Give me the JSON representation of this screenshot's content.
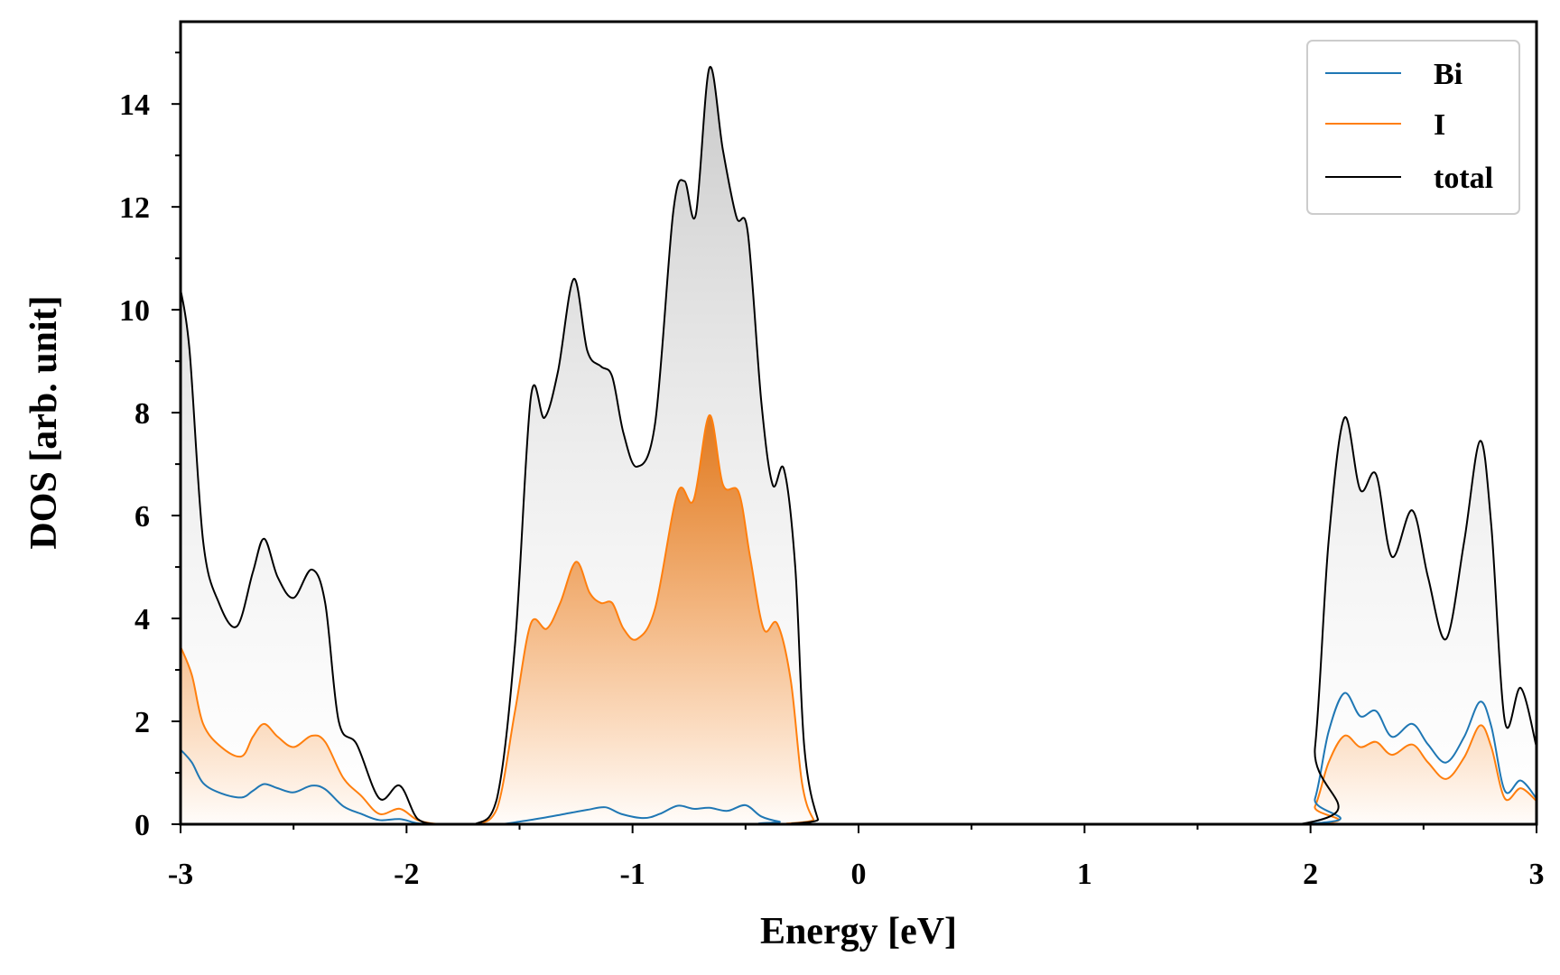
{
  "chart_data": {
    "type": "area",
    "title": "",
    "xlabel": "Energy [eV]",
    "ylabel": "DOS [arb. unit]",
    "xlim": [
      -3,
      3
    ],
    "ylim": [
      0,
      15.6
    ],
    "xticks": [
      -3,
      -2,
      -1,
      0,
      1,
      2,
      3
    ],
    "yticks": [
      0,
      2,
      4,
      6,
      8,
      10,
      12,
      14
    ],
    "grid": false,
    "legend_position": "top-right",
    "series": [
      {
        "name": "Bi",
        "color": "#1f77b4",
        "filled": false,
        "points": [
          [
            -3.0,
            1.45
          ],
          [
            -2.95,
            1.2
          ],
          [
            -2.9,
            0.8
          ],
          [
            -2.82,
            0.6
          ],
          [
            -2.73,
            0.52
          ],
          [
            -2.68,
            0.65
          ],
          [
            -2.63,
            0.78
          ],
          [
            -2.57,
            0.7
          ],
          [
            -2.5,
            0.62
          ],
          [
            -2.42,
            0.75
          ],
          [
            -2.36,
            0.68
          ],
          [
            -2.28,
            0.35
          ],
          [
            -2.2,
            0.2
          ],
          [
            -2.12,
            0.08
          ],
          [
            -2.03,
            0.1
          ],
          [
            -1.95,
            0.02
          ],
          [
            -1.85,
            0.0
          ],
          [
            -1.6,
            0.0
          ],
          [
            -1.5,
            0.05
          ],
          [
            -1.4,
            0.12
          ],
          [
            -1.3,
            0.2
          ],
          [
            -1.2,
            0.28
          ],
          [
            -1.12,
            0.33
          ],
          [
            -1.05,
            0.2
          ],
          [
            -0.95,
            0.12
          ],
          [
            -0.88,
            0.2
          ],
          [
            -0.8,
            0.36
          ],
          [
            -0.73,
            0.3
          ],
          [
            -0.66,
            0.32
          ],
          [
            -0.58,
            0.26
          ],
          [
            -0.5,
            0.37
          ],
          [
            -0.43,
            0.15
          ],
          [
            -0.35,
            0.05
          ],
          [
            -0.25,
            0.0
          ],
          [
            1.95,
            0.0
          ],
          [
            2.02,
            0.5
          ],
          [
            2.08,
            1.8
          ],
          [
            2.15,
            2.55
          ],
          [
            2.22,
            2.1
          ],
          [
            2.29,
            2.2
          ],
          [
            2.36,
            1.7
          ],
          [
            2.45,
            1.95
          ],
          [
            2.52,
            1.55
          ],
          [
            2.6,
            1.2
          ],
          [
            2.68,
            1.7
          ],
          [
            2.75,
            2.38
          ],
          [
            2.8,
            1.9
          ],
          [
            2.86,
            0.65
          ],
          [
            2.93,
            0.85
          ],
          [
            3.0,
            0.5
          ]
        ]
      },
      {
        "name": "I",
        "color": "#ff7f0e",
        "filled": true,
        "points": [
          [
            -3.0,
            3.45
          ],
          [
            -2.95,
            2.9
          ],
          [
            -2.9,
            1.95
          ],
          [
            -2.82,
            1.5
          ],
          [
            -2.73,
            1.32
          ],
          [
            -2.68,
            1.7
          ],
          [
            -2.63,
            1.95
          ],
          [
            -2.57,
            1.7
          ],
          [
            -2.5,
            1.5
          ],
          [
            -2.42,
            1.72
          ],
          [
            -2.36,
            1.6
          ],
          [
            -2.28,
            0.9
          ],
          [
            -2.2,
            0.55
          ],
          [
            -2.12,
            0.2
          ],
          [
            -2.03,
            0.3
          ],
          [
            -1.95,
            0.08
          ],
          [
            -1.85,
            0.0
          ],
          [
            -1.7,
            0.0
          ],
          [
            -1.6,
            0.3
          ],
          [
            -1.52,
            2.2
          ],
          [
            -1.45,
            3.9
          ],
          [
            -1.38,
            3.8
          ],
          [
            -1.32,
            4.3
          ],
          [
            -1.25,
            5.1
          ],
          [
            -1.19,
            4.5
          ],
          [
            -1.14,
            4.3
          ],
          [
            -1.09,
            4.3
          ],
          [
            -1.04,
            3.8
          ],
          [
            -0.98,
            3.6
          ],
          [
            -0.9,
            4.2
          ],
          [
            -0.8,
            6.45
          ],
          [
            -0.73,
            6.3
          ],
          [
            -0.66,
            7.95
          ],
          [
            -0.6,
            6.6
          ],
          [
            -0.53,
            6.45
          ],
          [
            -0.48,
            5.2
          ],
          [
            -0.42,
            3.8
          ],
          [
            -0.36,
            3.9
          ],
          [
            -0.3,
            2.8
          ],
          [
            -0.25,
            0.8
          ],
          [
            -0.2,
            0.1
          ],
          [
            -0.15,
            0.0
          ],
          [
            1.95,
            0.0
          ],
          [
            2.02,
            0.35
          ],
          [
            2.08,
            1.2
          ],
          [
            2.15,
            1.72
          ],
          [
            2.22,
            1.5
          ],
          [
            2.29,
            1.6
          ],
          [
            2.36,
            1.35
          ],
          [
            2.45,
            1.55
          ],
          [
            2.52,
            1.2
          ],
          [
            2.6,
            0.88
          ],
          [
            2.68,
            1.3
          ],
          [
            2.75,
            1.92
          ],
          [
            2.8,
            1.5
          ],
          [
            2.86,
            0.5
          ],
          [
            2.93,
            0.7
          ],
          [
            3.0,
            0.45
          ]
        ]
      },
      {
        "name": "total",
        "color": "#000000",
        "filled": true,
        "points": [
          [
            -3.0,
            10.4
          ],
          [
            -2.96,
            9.2
          ],
          [
            -2.9,
            5.5
          ],
          [
            -2.83,
            4.3
          ],
          [
            -2.75,
            3.85
          ],
          [
            -2.68,
            4.9
          ],
          [
            -2.63,
            5.55
          ],
          [
            -2.57,
            4.8
          ],
          [
            -2.5,
            4.4
          ],
          [
            -2.42,
            4.95
          ],
          [
            -2.36,
            4.3
          ],
          [
            -2.3,
            2.0
          ],
          [
            -2.22,
            1.55
          ],
          [
            -2.12,
            0.5
          ],
          [
            -2.03,
            0.75
          ],
          [
            -1.95,
            0.1
          ],
          [
            -1.85,
            0.0
          ],
          [
            -1.7,
            0.0
          ],
          [
            -1.6,
            0.5
          ],
          [
            -1.52,
            3.5
          ],
          [
            -1.45,
            8.3
          ],
          [
            -1.39,
            7.9
          ],
          [
            -1.33,
            8.8
          ],
          [
            -1.26,
            10.6
          ],
          [
            -1.2,
            9.2
          ],
          [
            -1.14,
            8.9
          ],
          [
            -1.09,
            8.7
          ],
          [
            -1.04,
            7.6
          ],
          [
            -0.98,
            6.95
          ],
          [
            -0.9,
            7.8
          ],
          [
            -0.82,
            11.9
          ],
          [
            -0.77,
            12.5
          ],
          [
            -0.72,
            11.85
          ],
          [
            -0.66,
            14.7
          ],
          [
            -0.6,
            13.1
          ],
          [
            -0.54,
            11.8
          ],
          [
            -0.49,
            11.5
          ],
          [
            -0.43,
            8.2
          ],
          [
            -0.38,
            6.6
          ],
          [
            -0.33,
            6.9
          ],
          [
            -0.28,
            5.0
          ],
          [
            -0.24,
            1.5
          ],
          [
            -0.18,
            0.1
          ],
          [
            -0.13,
            0.0
          ],
          [
            1.95,
            0.0
          ],
          [
            2.02,
            1.5
          ],
          [
            2.08,
            5.5
          ],
          [
            2.15,
            7.9
          ],
          [
            2.22,
            6.5
          ],
          [
            2.29,
            6.8
          ],
          [
            2.36,
            5.2
          ],
          [
            2.45,
            6.1
          ],
          [
            2.52,
            4.8
          ],
          [
            2.6,
            3.6
          ],
          [
            2.68,
            5.5
          ],
          [
            2.75,
            7.45
          ],
          [
            2.8,
            5.8
          ],
          [
            2.86,
            2.0
          ],
          [
            2.93,
            2.65
          ],
          [
            3.0,
            1.5
          ]
        ]
      }
    ]
  }
}
